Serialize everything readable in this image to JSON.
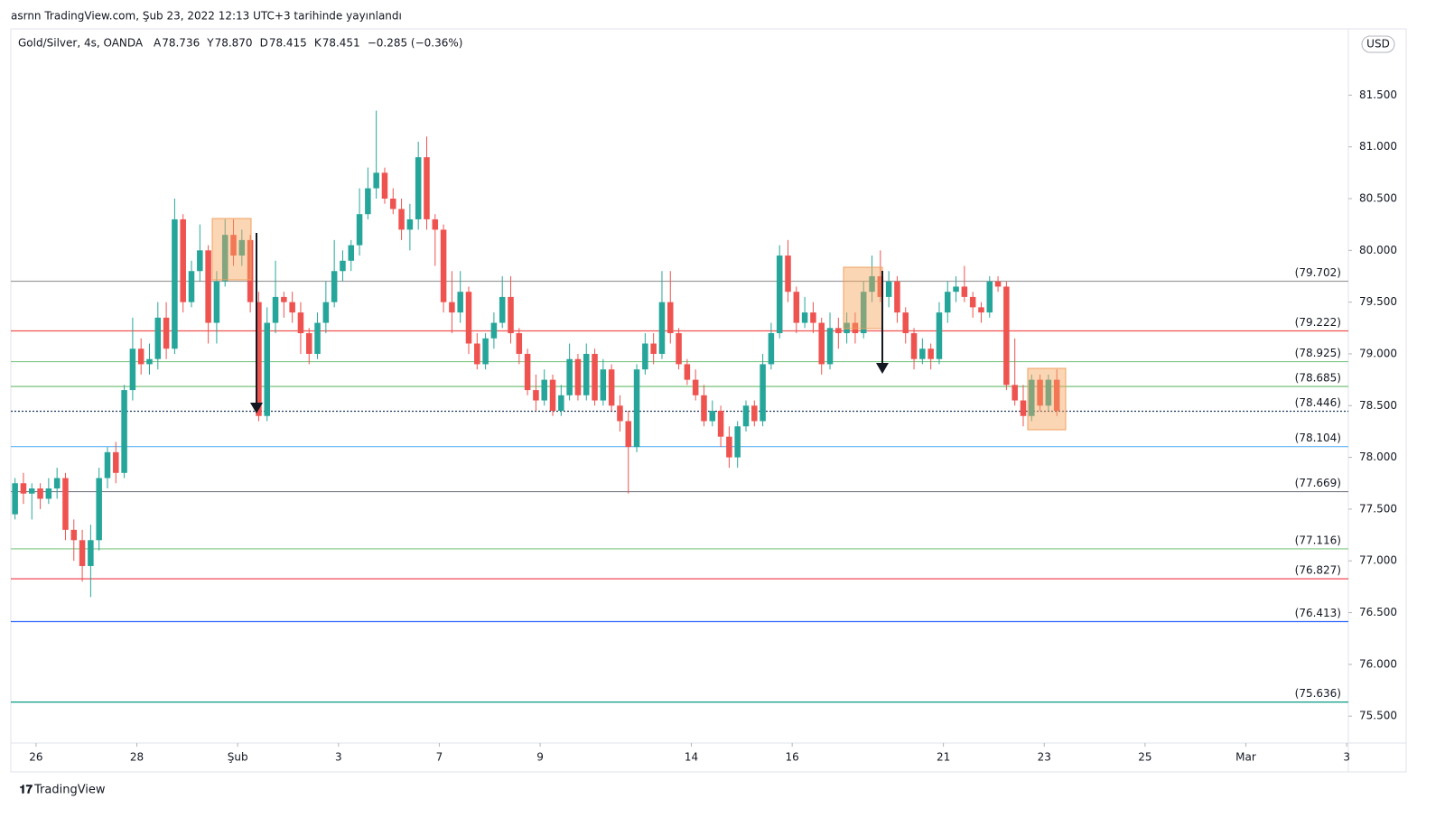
{
  "header": "asrnn TradingView.com, Şub 23, 2022 12:13 UTC+3 tarihinde yayınlandı",
  "footer": "TradingView",
  "chart_data": {
    "type": "candlestick",
    "symbol": "Gold/Silver, 4s, OANDA",
    "ohlc_legend": [
      {
        "label": "A",
        "value": "78.736"
      },
      {
        "label": "Y",
        "value": "78.870"
      },
      {
        "label": "D",
        "value": "78.415"
      },
      {
        "label": "K",
        "value": "78.451"
      }
    ],
    "change": "−0.285 (−0.36%)",
    "currency": "USD",
    "up_color": "#26a69a",
    "down_color": "#ef5350",
    "candles": [
      [
        77.45,
        77.8,
        77.4,
        77.75
      ],
      [
        77.75,
        77.85,
        77.55,
        77.65
      ],
      [
        77.65,
        77.75,
        77.4,
        77.7
      ],
      [
        77.7,
        77.75,
        77.5,
        77.6
      ],
      [
        77.6,
        77.8,
        77.55,
        77.7
      ],
      [
        77.7,
        77.9,
        77.6,
        77.8
      ],
      [
        77.8,
        77.85,
        77.2,
        77.3
      ],
      [
        77.3,
        77.4,
        77.0,
        77.2
      ],
      [
        77.2,
        77.3,
        76.8,
        76.95
      ],
      [
        76.95,
        77.35,
        76.65,
        77.2
      ],
      [
        77.2,
        77.9,
        77.1,
        77.8
      ],
      [
        77.8,
        78.1,
        77.7,
        78.05
      ],
      [
        78.05,
        78.15,
        77.75,
        77.85
      ],
      [
        77.85,
        78.7,
        77.8,
        78.65
      ],
      [
        78.65,
        79.35,
        78.55,
        79.05
      ],
      [
        79.05,
        79.15,
        78.8,
        78.9
      ],
      [
        78.9,
        79.1,
        78.8,
        78.95
      ],
      [
        78.95,
        79.5,
        78.85,
        79.35
      ],
      [
        79.35,
        79.5,
        78.95,
        79.05
      ],
      [
        79.05,
        80.5,
        79.0,
        80.3
      ],
      [
        80.3,
        80.35,
        79.4,
        79.5
      ],
      [
        79.5,
        79.9,
        79.45,
        79.8
      ],
      [
        79.8,
        80.25,
        79.7,
        80.0
      ],
      [
        80.0,
        80.05,
        79.1,
        79.3
      ],
      [
        79.3,
        79.8,
        79.1,
        79.7
      ],
      [
        79.7,
        80.3,
        79.65,
        80.15
      ],
      [
        80.15,
        80.3,
        79.85,
        79.95
      ],
      [
        79.95,
        80.2,
        79.85,
        80.1
      ],
      [
        80.1,
        80.15,
        79.4,
        79.5
      ],
      [
        79.5,
        79.6,
        78.35,
        78.4
      ],
      [
        78.4,
        79.45,
        78.35,
        79.3
      ],
      [
        79.3,
        79.9,
        79.2,
        79.55
      ],
      [
        79.55,
        79.6,
        79.35,
        79.5
      ],
      [
        79.5,
        79.6,
        79.3,
        79.4
      ],
      [
        79.4,
        79.5,
        79.0,
        79.2
      ],
      [
        79.2,
        79.25,
        78.9,
        79.0
      ],
      [
        79.0,
        79.4,
        78.95,
        79.3
      ],
      [
        79.3,
        79.7,
        79.2,
        79.5
      ],
      [
        79.5,
        80.1,
        79.45,
        79.8
      ],
      [
        79.8,
        80.0,
        79.7,
        79.9
      ],
      [
        79.9,
        80.1,
        79.8,
        80.05
      ],
      [
        80.05,
        80.6,
        79.95,
        80.35
      ],
      [
        80.35,
        80.8,
        80.3,
        80.6
      ],
      [
        80.6,
        81.35,
        80.5,
        80.75
      ],
      [
        80.75,
        80.8,
        80.45,
        80.5
      ],
      [
        80.5,
        80.6,
        80.35,
        80.4
      ],
      [
        80.4,
        80.5,
        80.1,
        80.2
      ],
      [
        80.2,
        80.45,
        80.0,
        80.3
      ],
      [
        80.3,
        81.05,
        80.2,
        80.9
      ],
      [
        80.9,
        81.1,
        80.2,
        80.3
      ],
      [
        80.3,
        80.35,
        79.85,
        80.2
      ],
      [
        80.2,
        80.25,
        79.4,
        79.5
      ],
      [
        79.5,
        79.8,
        79.2,
        79.4
      ],
      [
        79.4,
        79.8,
        79.3,
        79.6
      ],
      [
        79.6,
        79.65,
        79.0,
        79.1
      ],
      [
        79.1,
        79.2,
        78.85,
        78.9
      ],
      [
        78.9,
        79.2,
        78.85,
        79.15
      ],
      [
        79.15,
        79.4,
        79.05,
        79.3
      ],
      [
        79.3,
        79.75,
        79.25,
        79.55
      ],
      [
        79.55,
        79.75,
        79.1,
        79.2
      ],
      [
        79.2,
        79.25,
        78.9,
        79.0
      ],
      [
        79.0,
        79.05,
        78.6,
        78.65
      ],
      [
        78.65,
        78.8,
        78.45,
        78.55
      ],
      [
        78.55,
        78.85,
        78.5,
        78.75
      ],
      [
        78.75,
        78.8,
        78.4,
        78.45
      ],
      [
        78.45,
        78.7,
        78.4,
        78.6
      ],
      [
        78.6,
        79.1,
        78.55,
        78.95
      ],
      [
        78.95,
        79.0,
        78.55,
        78.6
      ],
      [
        78.6,
        79.1,
        78.55,
        79.0
      ],
      [
        79.0,
        79.05,
        78.5,
        78.55
      ],
      [
        78.55,
        78.95,
        78.5,
        78.85
      ],
      [
        78.85,
        78.9,
        78.45,
        78.5
      ],
      [
        78.5,
        78.6,
        78.25,
        78.35
      ],
      [
        78.35,
        78.45,
        77.65,
        78.1
      ],
      [
        78.1,
        78.9,
        78.05,
        78.85
      ],
      [
        78.85,
        79.2,
        78.8,
        79.1
      ],
      [
        79.1,
        79.2,
        78.9,
        79.0
      ],
      [
        79.0,
        79.8,
        78.95,
        79.5
      ],
      [
        79.5,
        79.8,
        79.1,
        79.2
      ],
      [
        79.2,
        79.25,
        78.85,
        78.9
      ],
      [
        78.9,
        78.95,
        78.7,
        78.75
      ],
      [
        78.75,
        78.85,
        78.55,
        78.6
      ],
      [
        78.6,
        78.7,
        78.3,
        78.35
      ],
      [
        78.35,
        78.55,
        78.3,
        78.45
      ],
      [
        78.45,
        78.5,
        78.1,
        78.2
      ],
      [
        78.2,
        78.3,
        77.9,
        78.0
      ],
      [
        78.0,
        78.35,
        77.9,
        78.3
      ],
      [
        78.3,
        78.55,
        78.25,
        78.5
      ],
      [
        78.5,
        78.55,
        78.3,
        78.35
      ],
      [
        78.35,
        79.0,
        78.3,
        78.9
      ],
      [
        78.9,
        79.3,
        78.85,
        79.2
      ],
      [
        79.2,
        80.05,
        79.15,
        79.95
      ],
      [
        79.95,
        80.1,
        79.5,
        79.6
      ],
      [
        79.6,
        79.65,
        79.2,
        79.3
      ],
      [
        79.3,
        79.55,
        79.25,
        79.4
      ],
      [
        79.4,
        79.5,
        79.2,
        79.3
      ],
      [
        79.3,
        79.35,
        78.8,
        78.9
      ],
      [
        78.9,
        79.4,
        78.85,
        79.25
      ],
      [
        79.25,
        79.35,
        79.05,
        79.2
      ],
      [
        79.2,
        79.4,
        79.1,
        79.3
      ],
      [
        79.3,
        79.4,
        79.1,
        79.2
      ],
      [
        79.2,
        79.7,
        79.15,
        79.6
      ],
      [
        79.6,
        79.95,
        79.5,
        79.75
      ],
      [
        79.75,
        80.0,
        79.5,
        79.55
      ],
      [
        79.55,
        79.8,
        79.45,
        79.7
      ],
      [
        79.7,
        79.75,
        79.3,
        79.4
      ],
      [
        79.4,
        79.45,
        79.1,
        79.2
      ],
      [
        79.2,
        79.25,
        78.85,
        78.95
      ],
      [
        78.95,
        79.15,
        78.9,
        79.05
      ],
      [
        79.05,
        79.1,
        78.85,
        78.95
      ],
      [
        78.95,
        79.5,
        78.9,
        79.4
      ],
      [
        79.4,
        79.7,
        79.3,
        79.6
      ],
      [
        79.6,
        79.75,
        79.5,
        79.65
      ],
      [
        79.65,
        79.85,
        79.5,
        79.55
      ],
      [
        79.55,
        79.6,
        79.35,
        79.45
      ],
      [
        79.45,
        79.5,
        79.3,
        79.4
      ],
      [
        79.4,
        79.75,
        79.35,
        79.7
      ],
      [
        79.7,
        79.75,
        79.6,
        79.65
      ],
      [
        79.65,
        79.7,
        78.65,
        78.7
      ],
      [
        78.7,
        79.15,
        78.5,
        78.55
      ],
      [
        78.55,
        78.7,
        78.3,
        78.4
      ],
      [
        78.4,
        78.8,
        78.35,
        78.75
      ],
      [
        78.75,
        78.8,
        78.45,
        78.5
      ],
      [
        78.5,
        78.8,
        78.45,
        78.75
      ],
      [
        78.75,
        78.85,
        78.4,
        78.45
      ]
    ],
    "levels": [
      {
        "value": 79.702,
        "label": "(79.702)",
        "color": "#9e9e9e"
      },
      {
        "value": 79.222,
        "label": "(79.222)",
        "color": "#ef5350"
      },
      {
        "value": 78.925,
        "label": "(78.925)",
        "color": "#81c784"
      },
      {
        "value": 78.685,
        "label": "(78.685)",
        "color": "#66bb6a"
      },
      {
        "value": 78.446,
        "label": "(78.446)",
        "color": "#26a69a",
        "style": "dotted"
      },
      {
        "value": 78.104,
        "label": "(78.104)",
        "color": "#64b5f6"
      },
      {
        "value": 77.669,
        "label": "(77.669)",
        "color": "#787b86"
      },
      {
        "value": 77.116,
        "label": "(77.116)",
        "color": "#81c784"
      },
      {
        "value": 76.827,
        "label": "(76.827)",
        "color": "#f23645"
      },
      {
        "value": 76.413,
        "label": "(76.413)",
        "color": "#2962ff"
      },
      {
        "value": 75.636,
        "label": "(75.636)",
        "color": "#089981"
      }
    ],
    "xlim": [
      -0.5,
      158.7
    ],
    "xticks": [
      {
        "value": 2.5,
        "label": "26"
      },
      {
        "value": 14.5,
        "label": "28"
      },
      {
        "value": 26.5,
        "label": "Şub"
      },
      {
        "value": 38.5,
        "label": "3"
      },
      {
        "value": 50.5,
        "label": "7"
      },
      {
        "value": 62.5,
        "label": "9"
      },
      {
        "value": 80.5,
        "label": "14"
      },
      {
        "value": 92.5,
        "label": "16"
      },
      {
        "value": 110.5,
        "label": "21"
      },
      {
        "value": 122.5,
        "label": "23"
      },
      {
        "value": 134.5,
        "label": "25"
      },
      {
        "value": 146.5,
        "label": "Mar"
      },
      {
        "value": 158.5,
        "label": "3"
      }
    ],
    "ylim": [
      75.24,
      82.14
    ],
    "yticks": [
      {
        "value": 75.5,
        "label": "75.500"
      },
      {
        "value": 76,
        "label": "76.000"
      },
      {
        "value": 76.5,
        "label": "76.500"
      },
      {
        "value": 77,
        "label": "77.000"
      },
      {
        "value": 77.5,
        "label": "77.500"
      },
      {
        "value": 78,
        "label": "78.000"
      },
      {
        "value": 78.5,
        "label": "78.500"
      },
      {
        "value": 79,
        "label": "79.000"
      },
      {
        "value": 79.5,
        "label": "79.500"
      },
      {
        "value": 80,
        "label": "80.000"
      },
      {
        "value": 80.5,
        "label": "80.500"
      },
      {
        "value": 81,
        "label": "81.000"
      },
      {
        "value": 81.5,
        "label": "81.500"
      }
    ]
  }
}
